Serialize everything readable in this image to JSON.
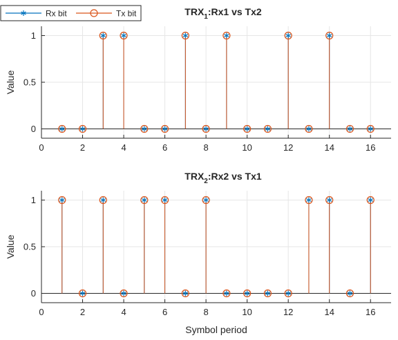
{
  "legend": {
    "entries": [
      {
        "label": "Rx bit",
        "color": "#0072BD",
        "marker": "asterisk"
      },
      {
        "label": "Tx bit",
        "color": "#D95319",
        "marker": "circle"
      }
    ],
    "placement": "top-left"
  },
  "chart_data": [
    {
      "type": "stem",
      "title": {
        "prefix": "TRX",
        "subscript": "1",
        "suffix": ":Rx1 vs Tx2"
      },
      "xlabel": "",
      "ylabel": "Value",
      "xlim": [
        0,
        17
      ],
      "ylim": [
        -0.1,
        1.1
      ],
      "xticks": [
        "0",
        "2",
        "4",
        "6",
        "8",
        "10",
        "12",
        "14",
        "16"
      ],
      "yticks": [
        "0",
        "0.5",
        "1"
      ],
      "grid": true,
      "x": [
        1,
        2,
        3,
        4,
        5,
        6,
        7,
        8,
        9,
        10,
        11,
        12,
        13,
        14,
        15,
        16
      ],
      "series": [
        {
          "name": "Rx bit",
          "values": [
            0,
            0,
            1,
            1,
            0,
            0,
            1,
            0,
            1,
            0,
            0,
            1,
            0,
            1,
            0,
            0
          ]
        },
        {
          "name": "Tx bit",
          "values": [
            0,
            0,
            1,
            1,
            0,
            0,
            1,
            0,
            1,
            0,
            0,
            1,
            0,
            1,
            0,
            0
          ]
        }
      ]
    },
    {
      "type": "stem",
      "title": {
        "prefix": "TRX",
        "subscript": "2",
        "suffix": ":Rx2 vs Tx1"
      },
      "xlabel": "Symbol period",
      "ylabel": "Value",
      "xlim": [
        0,
        17
      ],
      "ylim": [
        -0.1,
        1.1
      ],
      "xticks": [
        "0",
        "2",
        "4",
        "6",
        "8",
        "10",
        "12",
        "14",
        "16"
      ],
      "yticks": [
        "0",
        "0.5",
        "1"
      ],
      "grid": true,
      "x": [
        1,
        2,
        3,
        4,
        5,
        6,
        7,
        8,
        9,
        10,
        11,
        12,
        13,
        14,
        15,
        16
      ],
      "series": [
        {
          "name": "Rx bit",
          "values": [
            1,
            0,
            1,
            0,
            1,
            1,
            0,
            1,
            0,
            0,
            0,
            0,
            1,
            1,
            0,
            1
          ]
        },
        {
          "name": "Tx bit",
          "values": [
            1,
            0,
            1,
            0,
            1,
            1,
            0,
            1,
            0,
            0,
            0,
            0,
            1,
            1,
            0,
            1
          ]
        }
      ]
    }
  ]
}
